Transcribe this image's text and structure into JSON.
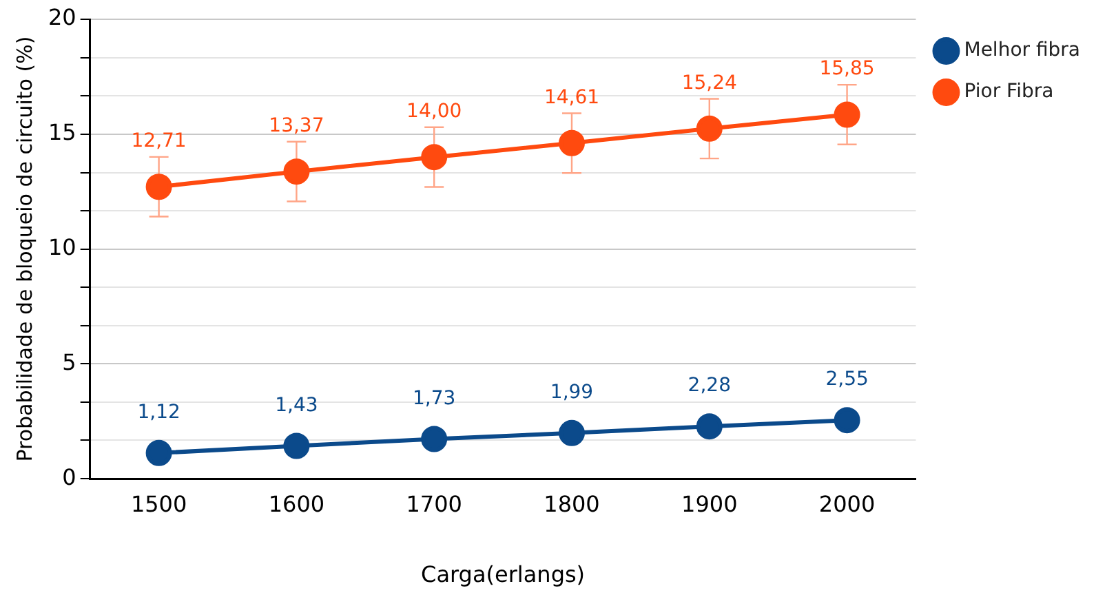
{
  "chart_data": {
    "type": "line",
    "xlabel": "Carga(erlangs)",
    "ylabel": "Probabilidade de bloqueio de circuito (%)",
    "categories": [
      "1500",
      "1600",
      "1700",
      "1800",
      "1900",
      "2000"
    ],
    "series": [
      {
        "name": "Melhor fibra",
        "color": "#0b4a8b",
        "values": [
          1.12,
          1.43,
          1.73,
          1.99,
          2.28,
          2.55
        ],
        "value_labels": [
          "1,12",
          "1,43",
          "1,73",
          "1,99",
          "2,28",
          "2,55"
        ],
        "errors": [
          0.1,
          0.1,
          0.1,
          0.1,
          0.1,
          0.1
        ]
      },
      {
        "name": "Pior Fibra",
        "color": "#ff4a0f",
        "values": [
          12.71,
          13.37,
          14.0,
          14.61,
          15.24,
          15.85
        ],
        "value_labels": [
          "12,71",
          "13,37",
          "14,00",
          "14,61",
          "15,24",
          "15,85"
        ],
        "errors": [
          1.3,
          1.3,
          1.3,
          1.3,
          1.3,
          1.3
        ]
      }
    ],
    "ylim": [
      0,
      20
    ],
    "yticks": [
      0,
      {
        "value": 1.67,
        "label": null
      },
      {
        "value": 3.33,
        "label": null
      },
      5,
      {
        "value": 6.67,
        "label": null
      },
      {
        "value": 8.33,
        "label": null
      },
      10,
      {
        "value": 11.67,
        "label": null
      },
      {
        "value": 13.33,
        "label": null
      },
      15,
      {
        "value": 16.67,
        "label": null
      },
      {
        "value": 18.33,
        "label": null
      },
      20
    ],
    "grid": "y",
    "legend": "top right",
    "marker": "circle",
    "line_style": "solid"
  }
}
